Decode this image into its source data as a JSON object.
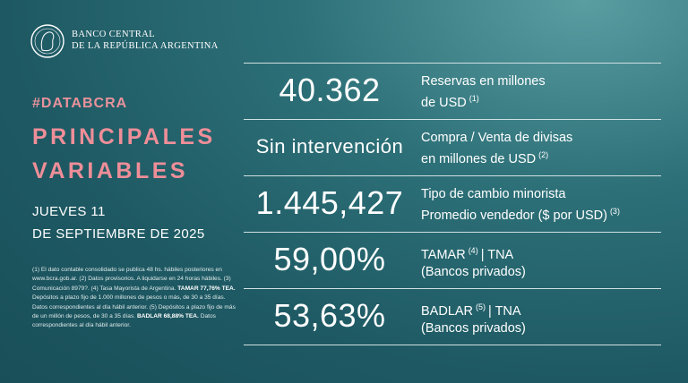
{
  "header": {
    "institution_lines": [
      "BANCO CENTRAL",
      "DE LA REPÚBLICA ARGENTINA"
    ]
  },
  "hashtag": "#DATABCRA",
  "title_lines": [
    "PRINCIPALES",
    "VARIABLES"
  ],
  "date_lines": [
    "JUEVES 11",
    "DE SEPTIEMBRE DE 2025"
  ],
  "footnote": [
    {
      "text": "(1) El dato contable consolidado se publica 48 hs. hábiles posteriores en www.bcra.gob.ar. (2) Datos provisorios. A liquidarse en 24 horas hábiles. (3) Comunicación 8979?. (4) Tasa Mayorista de Argentina.",
      "bold": false
    },
    {
      "text": "TAMAR 77,76% TEA.",
      "bold": true
    },
    {
      "text": "Depósitos a plazo fijo de 1.000 millones de pesos o más, de 30 a 35 días. Datos correspondientes al día hábil anterior. (5) Depósitos a plazo fijo de más de un millón de pesos, de 30 a 35 días.",
      "bold": false
    },
    {
      "text": "BADLAR 68,88% TEA.",
      "bold": true
    },
    {
      "text": "Datos correspondientes al día hábil anterior.",
      "bold": false
    }
  ],
  "indicators": [
    {
      "value": "40.362",
      "label_lines": [
        [
          {
            "text": "Reservas en millones"
          }
        ],
        [
          {
            "text": "de USD"
          },
          {
            "sup": "(1)"
          }
        ]
      ]
    },
    {
      "value": "Sin intervención",
      "label_lines": [
        [
          {
            "text": "Compra / Venta de divisas"
          }
        ],
        [
          {
            "text": "en millones de USD"
          },
          {
            "sup": "(2)"
          }
        ]
      ]
    },
    {
      "value": "1.445,427",
      "label_lines": [
        [
          {
            "text": "Tipo de cambio minorista"
          }
        ],
        [
          {
            "text": "Promedio vendedor ($ por USD)"
          },
          {
            "sup": "(3)"
          }
        ]
      ]
    },
    {
      "value": "59,00%",
      "label_lines": [
        [
          {
            "text": "TAMAR"
          },
          {
            "sup": "(4)"
          },
          {
            "text": "| TNA"
          }
        ],
        [
          {
            "text": "(Bancos privados)"
          }
        ]
      ]
    },
    {
      "value": "53,63%",
      "label_lines": [
        [
          {
            "text": "BADLAR"
          },
          {
            "sup": "(5)"
          },
          {
            "text": "| TNA"
          }
        ],
        [
          {
            "text": "(Bancos privados)"
          }
        ]
      ]
    }
  ]
}
